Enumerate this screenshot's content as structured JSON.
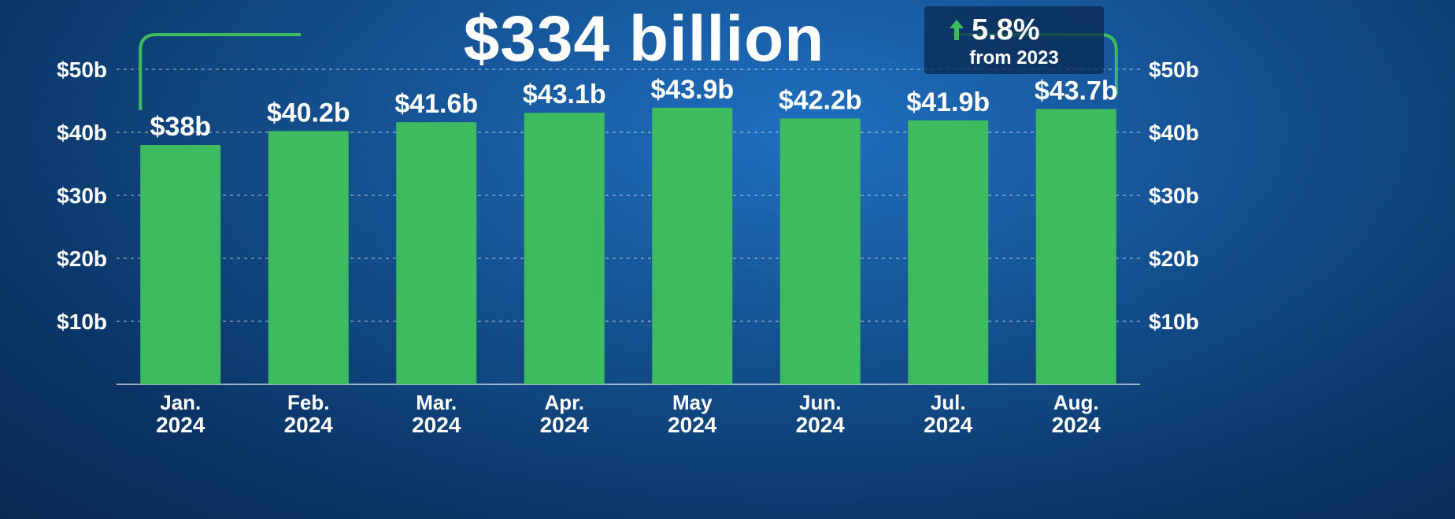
{
  "header": {
    "total": "$334 billion",
    "change": "5.8%",
    "change_note": "from 2023"
  },
  "colors": {
    "bar": "#3dbb5e",
    "bracket": "#3dbb5e",
    "text": "#ffffff",
    "arrow": "#3dbb5e"
  },
  "icons": {
    "change_arrow": "arrow-up-icon"
  },
  "chart_data": {
    "type": "bar",
    "categories": [
      [
        "Jan.",
        "2024"
      ],
      [
        "Feb.",
        "2024"
      ],
      [
        "Mar.",
        "2024"
      ],
      [
        "Apr.",
        "2024"
      ],
      [
        "May",
        "2024"
      ],
      [
        "Jun.",
        "2024"
      ],
      [
        "Jul.",
        "2024"
      ],
      [
        "Aug.",
        "2024"
      ]
    ],
    "values": [
      38,
      40.2,
      41.6,
      43.1,
      43.9,
      42.2,
      41.9,
      43.7
    ],
    "data_labels": [
      "$38b",
      "$40.2b",
      "$41.6b",
      "$43.1b",
      "$43.9b",
      "$42.2b",
      "$41.9b",
      "$43.7b"
    ],
    "ylim": [
      0,
      50
    ],
    "yticks": [
      10,
      20,
      30,
      40,
      50
    ],
    "ytick_labels": [
      "$10b",
      "$20b",
      "$30b",
      "$40b",
      "$50b"
    ],
    "grid": true,
    "axes": "left-and-right"
  }
}
